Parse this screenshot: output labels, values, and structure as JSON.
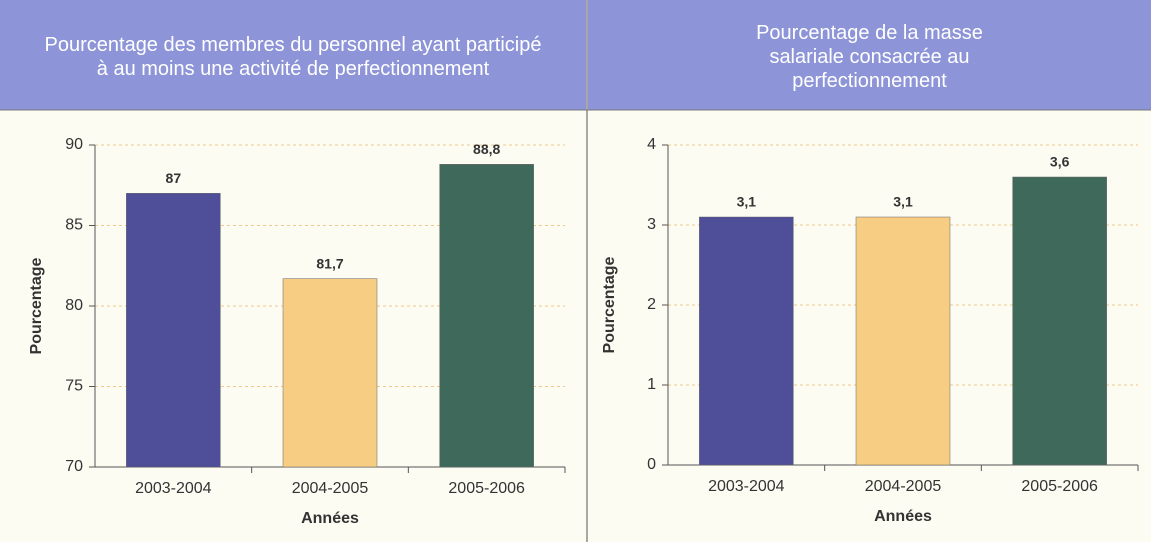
{
  "chart_data": [
    {
      "type": "bar",
      "title": "Pourcentage des membres du personnel ayant participé à au moins une activité de perfectionnement",
      "xlabel": "Années",
      "ylabel": "Pourcentage",
      "categories": [
        "2003-2004",
        "2004-2005",
        "2005-2006"
      ],
      "values": [
        87,
        81.7,
        88.8
      ],
      "value_labels": [
        "87",
        "81,7",
        "88,8"
      ],
      "colors": [
        "#4e4f98",
        "#f6cd82",
        "#3f6a5b"
      ],
      "ylim": [
        70,
        90
      ],
      "yticks": [
        70,
        75,
        80,
        85,
        90
      ],
      "grid": true
    },
    {
      "type": "bar",
      "title": "Pourcentage de la masse salariale consacrée au perfectionnement",
      "xlabel": "Années",
      "ylabel": "Pourcentage",
      "categories": [
        "2003-2004",
        "2004-2005",
        "2005-2006"
      ],
      "values": [
        3.1,
        3.1,
        3.6
      ],
      "value_labels": [
        "3,1",
        "3,1",
        "3,6"
      ],
      "colors": [
        "#4e4f98",
        "#f6cd82",
        "#3f6a5b"
      ],
      "ylim": [
        0,
        4
      ],
      "yticks": [
        0,
        1,
        2,
        3,
        4
      ],
      "grid": true
    }
  ]
}
